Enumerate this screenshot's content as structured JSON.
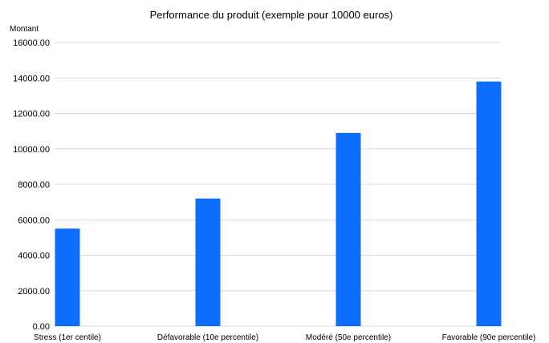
{
  "chart_data": {
    "type": "bar",
    "title": "Performance du produit (exemple pour 10000 euros)",
    "xlabel": "",
    "ylabel": "Montant",
    "ylim": [
      0,
      16000
    ],
    "yticks": [
      "0.00",
      "2000.00",
      "4000.00",
      "6000.00",
      "8000.00",
      "10000.00",
      "12000.00",
      "14000.00",
      "16000.00"
    ],
    "categories": [
      "Stress (1er centile)",
      "Défavorable (10e percentile)",
      "Modéré (50e percentile)",
      "Favorable (90e percentile)"
    ],
    "values": [
      5500,
      7200,
      10900,
      13800
    ],
    "grid": true,
    "legend": "none",
    "bar_color": "#0d6efd",
    "grid_color": "#d9d9d9"
  }
}
